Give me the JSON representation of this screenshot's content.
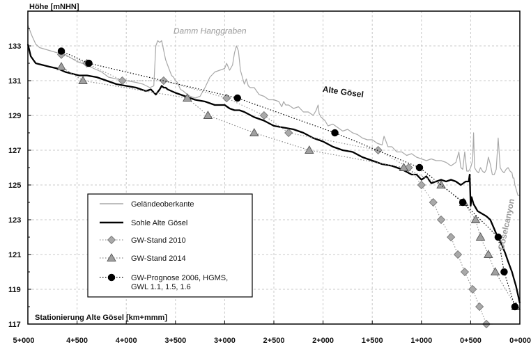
{
  "chart_data": {
    "type": "line",
    "ylabel": "Höhe [mNHN]",
    "xlabel": "Stationierung Alte Gösel [km+mmm]",
    "xlim": [
      5000,
      0
    ],
    "ylim": [
      117,
      135
    ],
    "grid": true,
    "x_ticks": [
      {
        "v": 5000,
        "t": "5+000"
      },
      {
        "v": 4500,
        "t": "4+500"
      },
      {
        "v": 4000,
        "t": "4+000"
      },
      {
        "v": 3500,
        "t": "3+500"
      },
      {
        "v": 3000,
        "t": "3+000"
      },
      {
        "v": 2500,
        "t": "2+500"
      },
      {
        "v": 2000,
        "t": "2+000"
      },
      {
        "v": 1500,
        "t": "1+500"
      },
      {
        "v": 1000,
        "t": "1+000"
      },
      {
        "v": 500,
        "t": "0+500"
      },
      {
        "v": 0,
        "t": "0+000"
      }
    ],
    "y_ticks": [
      {
        "v": 117,
        "t": "117"
      },
      {
        "v": 119,
        "t": "119"
      },
      {
        "v": 121,
        "t": "121"
      },
      {
        "v": 123,
        "t": "123"
      },
      {
        "v": 125,
        "t": "125"
      },
      {
        "v": 127,
        "t": "127"
      },
      {
        "v": 129,
        "t": "129"
      },
      {
        "v": 131,
        "t": "131"
      },
      {
        "v": 133,
        "t": "133"
      }
    ],
    "annotations": [
      {
        "text": "Damm Hanggraben",
        "x": 3150,
        "y": 133.7,
        "color": "#9a9a9a",
        "italic": true,
        "rotate": 0
      },
      {
        "text": "Alte Gösel",
        "x": 1800,
        "y": 130.2,
        "color": "#111111",
        "italic": false,
        "rotate": 8
      },
      {
        "text": "Göselcanyon",
        "x": 110,
        "y": 122.7,
        "color": "#9a9a9a",
        "italic": false,
        "rotate": -78
      }
    ],
    "series": [
      {
        "name": "Geländeoberkante",
        "style": "terrain",
        "color": "#a8a8a8",
        "x": [
          5000,
          4960,
          4920,
          4880,
          4820,
          4760,
          4700,
          4620,
          4560,
          4500,
          4450,
          4400,
          4330,
          4250,
          4180,
          4100,
          4000,
          3900,
          3830,
          3760,
          3720,
          3700,
          3680,
          3660,
          3640,
          3600,
          3560,
          3540,
          3520,
          3500,
          3480,
          3450,
          3420,
          3400,
          3350,
          3300,
          3250,
          3200,
          3150,
          3100,
          3050,
          3000,
          2980,
          2950,
          2920,
          2900,
          2880,
          2860,
          2840,
          2820,
          2800,
          2780,
          2760,
          2740,
          2700,
          2650,
          2600,
          2550,
          2500,
          2450,
          2420,
          2400,
          2380,
          2350,
          2300,
          2250,
          2200,
          2150,
          2100,
          2070,
          2050,
          2040,
          2020,
          2000,
          1980,
          1950,
          1900,
          1850,
          1800,
          1750,
          1700,
          1650,
          1600,
          1550,
          1500,
          1450,
          1400,
          1380,
          1360,
          1340,
          1300,
          1250,
          1200,
          1150,
          1100,
          1050,
          1000,
          950,
          900,
          850,
          800,
          750,
          700,
          650,
          620,
          600,
          580,
          560,
          540,
          520,
          500,
          480,
          470,
          460,
          440,
          420,
          400,
          380,
          360,
          350,
          340,
          320,
          300,
          280,
          260,
          240,
          220,
          200,
          180,
          160,
          140,
          120,
          100,
          80,
          70,
          60,
          50,
          40,
          30,
          20,
          10,
          0
        ],
        "y": [
          134.2,
          133.6,
          133.1,
          132.9,
          132.8,
          132.7,
          132.6,
          132.5,
          132.3,
          132.1,
          132.0,
          131.9,
          131.7,
          131.5,
          131.2,
          131.1,
          131.0,
          130.9,
          130.8,
          130.6,
          130.7,
          133.0,
          133.3,
          133.2,
          133.3,
          132.2,
          131.6,
          131.3,
          131.2,
          131.0,
          130.9,
          130.5,
          130.4,
          130.3,
          130.1,
          130.0,
          130.1,
          130.6,
          131.2,
          131.5,
          131.6,
          131.7,
          132.0,
          131.6,
          131.9,
          132.6,
          133.0,
          132.7,
          131.6,
          131.2,
          130.8,
          131.1,
          130.7,
          130.6,
          130.6,
          130.2,
          130.1,
          129.9,
          129.9,
          129.8,
          129.5,
          129.8,
          129.6,
          129.6,
          129.4,
          129.5,
          129.2,
          129.2,
          129.0,
          129.3,
          129.6,
          129.1,
          128.9,
          128.8,
          128.7,
          128.4,
          128.5,
          128.3,
          128.1,
          128.2,
          128.0,
          127.9,
          127.7,
          127.6,
          127.6,
          127.4,
          127.3,
          127.8,
          127.5,
          127.2,
          127.2,
          126.9,
          126.9,
          126.7,
          126.8,
          126.6,
          126.5,
          126.4,
          126.5,
          126.4,
          126.4,
          126.3,
          126.1,
          126.3,
          126.9,
          126.0,
          125.9,
          126.9,
          125.8,
          125.8,
          126.0,
          126.4,
          128.0,
          126.0,
          125.8,
          125.7,
          126.0,
          125.8,
          125.7,
          125.8,
          125.9,
          126.6,
          126.2,
          125.6,
          125.6,
          125.9,
          127.7,
          126.0,
          125.8,
          125.7,
          125.9,
          126.0,
          125.8,
          125.7,
          125.4,
          125.4,
          125.0,
          124.8,
          124.6,
          124.4,
          124.4,
          124.4
        ]
      },
      {
        "name": "Sohle Alte Gösel",
        "style": "solid",
        "color": "#000000",
        "x": [
          5000,
          4970,
          4920,
          4850,
          4780,
          4700,
          4620,
          4550,
          4480,
          4400,
          4300,
          4200,
          4100,
          4000,
          3900,
          3800,
          3750,
          3700,
          3660,
          3640,
          3620,
          3600,
          3580,
          3500,
          3400,
          3300,
          3200,
          3100,
          3000,
          2950,
          2900,
          2850,
          2800,
          2700,
          2600,
          2500,
          2400,
          2300,
          2200,
          2100,
          2000,
          1900,
          1800,
          1700,
          1600,
          1500,
          1400,
          1300,
          1200,
          1100,
          1050,
          1000,
          950,
          900,
          850,
          800,
          750,
          700,
          650,
          600,
          550,
          520,
          510,
          500,
          490,
          470,
          450,
          430,
          400,
          370,
          340,
          300,
          270,
          240,
          210,
          180,
          150,
          120,
          100,
          80,
          60,
          40,
          20,
          0
        ],
        "y": [
          133.1,
          132.4,
          132.0,
          131.9,
          131.8,
          131.7,
          131.5,
          131.4,
          131.3,
          131.3,
          131.2,
          131.0,
          130.8,
          130.7,
          130.6,
          130.4,
          130.5,
          130.2,
          130.5,
          130.7,
          130.6,
          130.6,
          130.5,
          130.3,
          130.1,
          129.9,
          129.8,
          129.6,
          129.6,
          129.4,
          129.3,
          129.3,
          129.2,
          128.9,
          128.7,
          128.4,
          128.3,
          128.2,
          128.0,
          127.7,
          127.5,
          127.2,
          127.0,
          126.9,
          126.6,
          126.4,
          126.2,
          126.1,
          125.9,
          125.6,
          125.6,
          125.3,
          125.5,
          125.1,
          125.2,
          125.3,
          125.2,
          125.3,
          125.2,
          125.0,
          125.2,
          125.2,
          125.6,
          123.8,
          124.3,
          123.9,
          123.7,
          123.5,
          123.4,
          123.3,
          123.2,
          123.0,
          122.6,
          122.2,
          121.9,
          121.5,
          121.1,
          120.6,
          120.3,
          120.0,
          119.6,
          119.2,
          118.7,
          118.2
        ]
      },
      {
        "name": "GW-Stand 2010",
        "style": "dotted",
        "marker": "diamond",
        "color": "#999999",
        "x": [
          4660,
          4400,
          4040,
          3620,
          2980,
          2600,
          2350,
          1440,
          1130,
          1000,
          880,
          800,
          700,
          630,
          560,
          480,
          410,
          340,
          280
        ],
        "y": [
          132.5,
          132.0,
          131.0,
          131.0,
          130.0,
          129.0,
          128.0,
          127.0,
          126.0,
          125.0,
          124.0,
          123.0,
          122.0,
          121.0,
          120.0,
          119.0,
          118.0,
          117.0,
          116.2
        ]
      },
      {
        "name": "GW-Stand 2014",
        "style": "dotted",
        "marker": "triangle",
        "color": "#888888",
        "x": [
          4660,
          4440,
          3380,
          3170,
          2700,
          2140,
          1180,
          800,
          570,
          450,
          400,
          320,
          250,
          40
        ],
        "y": [
          131.8,
          131.0,
          130.0,
          129.0,
          128.0,
          127.0,
          126.0,
          125.0,
          124.0,
          123.0,
          122.0,
          121.0,
          120.0,
          118.0
        ]
      },
      {
        "name": "GW-Prognose 2006, HGMS,\nGWL 1.1, 1.5, 1.6",
        "style": "dotted",
        "marker": "circle",
        "color": "#000000",
        "x": [
          4660,
          4380,
          2870,
          1880,
          1020,
          580,
          220,
          160,
          50
        ],
        "y": [
          132.7,
          132.0,
          130.0,
          128.0,
          126.0,
          124.0,
          122.0,
          120.0,
          118.0
        ]
      }
    ]
  }
}
